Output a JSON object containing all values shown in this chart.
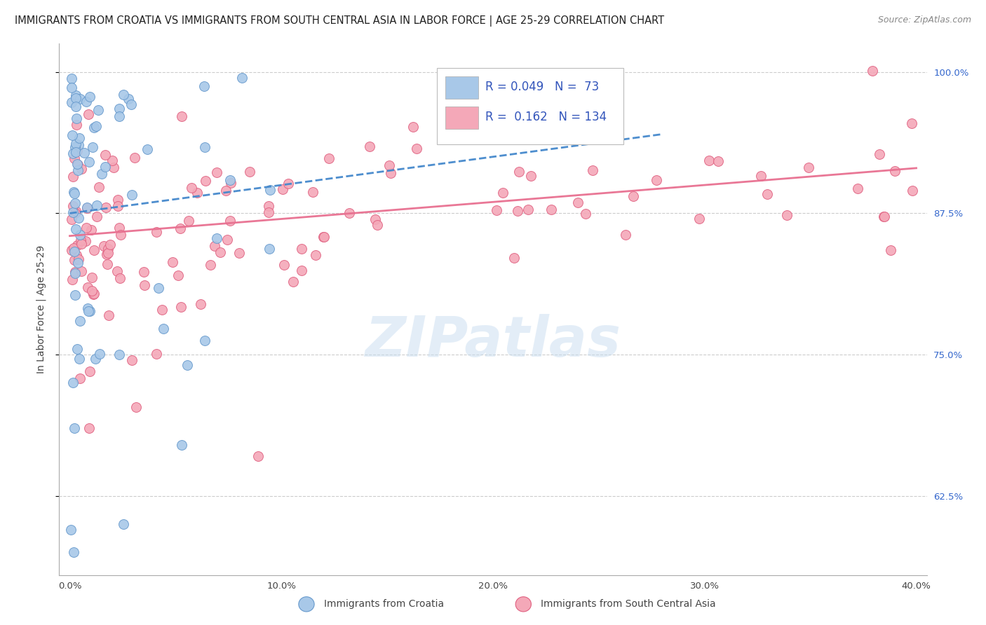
{
  "title": "IMMIGRANTS FROM CROATIA VS IMMIGRANTS FROM SOUTH CENTRAL ASIA IN LABOR FORCE | AGE 25-29 CORRELATION CHART",
  "source": "Source: ZipAtlas.com",
  "ylabel": "In Labor Force | Age 25-29",
  "xlim": [
    -0.005,
    0.405
  ],
  "ylim": [
    0.555,
    1.025
  ],
  "ytick_labels": [
    "62.5%",
    "75.0%",
    "87.5%",
    "100.0%"
  ],
  "ytick_values": [
    0.625,
    0.75,
    0.875,
    1.0
  ],
  "xtick_labels": [
    "0.0%",
    "10.0%",
    "20.0%",
    "30.0%",
    "40.0%"
  ],
  "xtick_values": [
    0.0,
    0.1,
    0.2,
    0.3,
    0.4
  ],
  "legend_label1": "Immigrants from Croatia",
  "legend_label2": "Immigrants from South Central Asia",
  "R1": 0.049,
  "N1": 73,
  "R2": 0.162,
  "N2": 134,
  "color1": "#a8c8e8",
  "color2": "#f4a8b8",
  "edge1": "#6699cc",
  "edge2": "#e06080",
  "trend1_color": "#4488cc",
  "trend2_color": "#e87090",
  "watermark": "ZIPatlas",
  "title_fontsize": 10.5,
  "source_fontsize": 9,
  "tick_fontsize": 9.5,
  "legend_fontsize": 12
}
